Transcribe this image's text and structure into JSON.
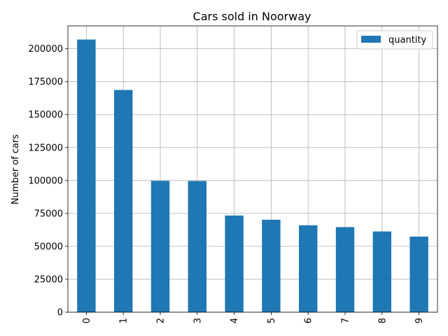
{
  "chart_data": {
    "type": "bar",
    "title": "Cars sold in Noorway",
    "xlabel": "",
    "ylabel": "Number of cars",
    "categories": [
      "0",
      "1",
      "2",
      "3",
      "4",
      "5",
      "6",
      "7",
      "8",
      "9"
    ],
    "series": [
      {
        "name": "quantity",
        "color": "#1f77b4",
        "values": [
          207000,
          168700,
          99700,
          99600,
          73400,
          70200,
          66000,
          64600,
          61300,
          57400
        ]
      }
    ],
    "ylim": [
      0,
      217350
    ],
    "yticks": [
      0,
      25000,
      50000,
      75000,
      100000,
      125000,
      150000,
      175000,
      200000
    ],
    "ytick_labels": [
      "0",
      "25000",
      "50000",
      "75000",
      "100000",
      "125000",
      "150000",
      "175000",
      "200000"
    ],
    "grid": true,
    "legend_position": "top-right",
    "xtick_rotation": "vertical"
  }
}
